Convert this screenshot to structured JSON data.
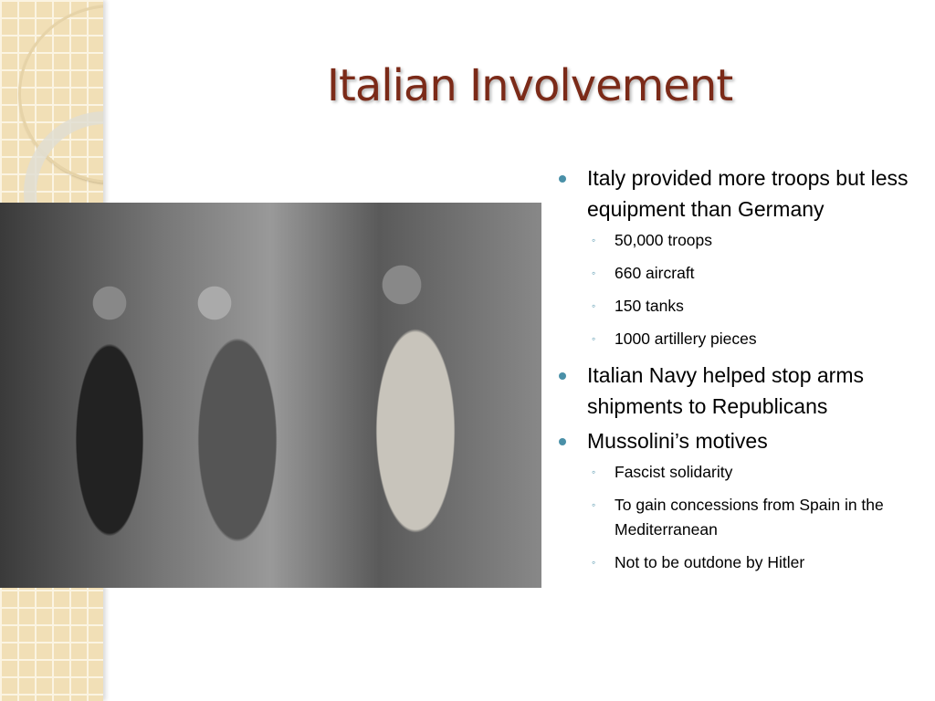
{
  "slide": {
    "title": "Italian Involvement",
    "accent_color": "#7b2a18",
    "bullet_color": "#4a90a8",
    "bullets": [
      {
        "text": "Italy provided more troops but less equipment than Germany",
        "sub": [
          "50,000 troops",
          "660 aircraft",
          "150 tanks",
          "1000 artillery pieces"
        ]
      },
      {
        "text": "Italian Navy helped stop arms shipments to Republicans",
        "sub": []
      },
      {
        "text": "Mussolini’s motives",
        "sub": [
          "Fascist solidarity",
          "To gain concessions from Spain in the Mediterranean",
          "Not to be outdone by Hitler"
        ]
      }
    ]
  }
}
